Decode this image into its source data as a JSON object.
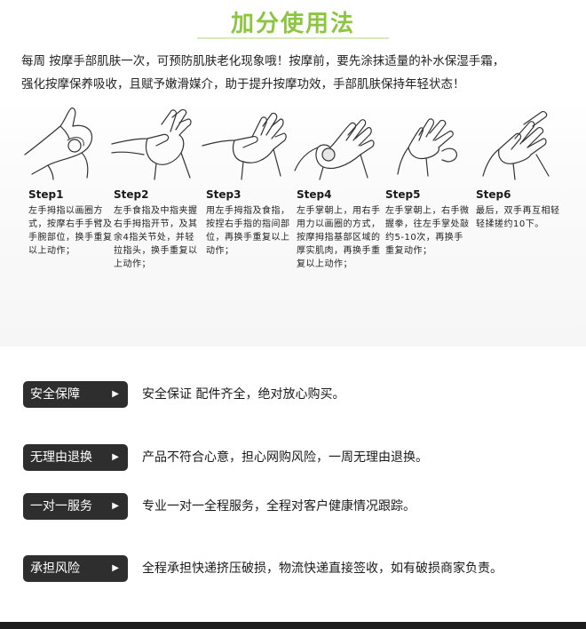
{
  "title": "加分使用法",
  "intro": {
    "line1": "每周 按摩手部肌肤一次，可预防肌肤老化现象哦！按摩前，要先涂抹适量的补水保湿手霜，",
    "line2": "强化按摩保养吸收，且赋予嫩滑媒介，助于提升按摩功效，手部肌肤保持年轻状态！"
  },
  "steps": [
    {
      "label": "Step1",
      "desc": "左手拇指以画圈方式，按摩右手手臂及手腕部位，换手重复以上动作；"
    },
    {
      "label": "Step2",
      "desc": "左手食指及中指夹握右手拇指开节，及其余4指关节处，并轻拉指头，换手重复以上动作；"
    },
    {
      "label": "Step3",
      "desc": "用左手拇指及食指，按捏右手指的指间部位，再换手重复以上动作；"
    },
    {
      "label": "Step4",
      "desc": "左手掌朝上，用右手用力以画圈的方式，按摩拇指基部区域的厚实肌肉，再换手重复以上动作；"
    },
    {
      "label": "Step5",
      "desc": "左手掌朝上，右手微握拳，往左手掌处敲约5-10次，再换手重复动作；"
    },
    {
      "label": "Step6",
      "desc": "最后，双手再互相轻轻揉搓约10下。"
    }
  ],
  "features": [
    {
      "badge": "安全保障",
      "text": "安全保证 配件齐全，绝对放心购买。"
    },
    {
      "badge": "无理由退换",
      "text": "产品不符合心意，担心网购风险，一周无理由退换。"
    },
    {
      "badge": "一对一服务",
      "text": "专业一对一全程服务，全程对客户健康情况跟踪。"
    },
    {
      "badge": "承担风险",
      "text": "全程承担快递挤压破损，物流快递直接签收，如有破损商家负责。"
    }
  ],
  "arrow_glyph": "▶",
  "colors": {
    "title": "#8cc63f",
    "badge": "#2e2e2e"
  }
}
